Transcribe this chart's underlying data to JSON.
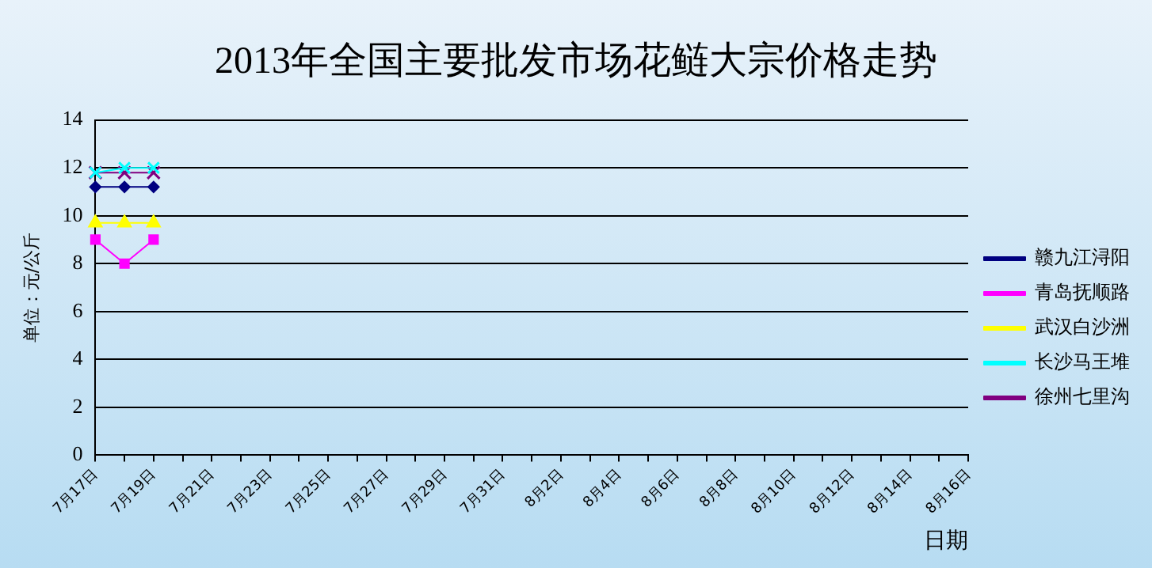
{
  "chart_data": {
    "type": "line",
    "title": "2013年全国主要批发市场花鲢大宗价格走势",
    "xlabel": "日期",
    "ylabel": "单位：元/公斤",
    "categories": [
      "7月17日",
      null,
      "7月19日",
      null,
      "7月21日",
      null,
      "7月23日",
      null,
      "7月25日",
      null,
      "7月27日",
      null,
      "7月29日",
      null,
      "7月31日",
      null,
      "8月2日",
      null,
      "8月4日",
      null,
      "8月6日",
      null,
      "8月8日",
      null,
      "8月10日",
      null,
      "8月12日",
      null,
      "8月14日",
      null,
      "8月16日"
    ],
    "series": [
      {
        "name": "赣九江浔阳",
        "color": "#000080",
        "marker": "diamond",
        "values": [
          11.2,
          11.2,
          11.2,
          null,
          null,
          null,
          null,
          null,
          null,
          null,
          null,
          null,
          null,
          null,
          null,
          null,
          null,
          null,
          null,
          null,
          null,
          null,
          null,
          null,
          null,
          null,
          null,
          null,
          null,
          null,
          null
        ]
      },
      {
        "name": "青岛抚顺路",
        "color": "#ff00ff",
        "marker": "square",
        "values": [
          9,
          8,
          9,
          null,
          null,
          null,
          null,
          null,
          null,
          null,
          null,
          null,
          null,
          null,
          null,
          null,
          null,
          null,
          null,
          null,
          null,
          null,
          null,
          null,
          null,
          null,
          null,
          null,
          null,
          null,
          null
        ]
      },
      {
        "name": "武汉白沙洲",
        "color": "#ffff00",
        "marker": "triangle",
        "values": [
          9.7,
          9.7,
          9.7,
          null,
          null,
          null,
          null,
          null,
          null,
          null,
          null,
          null,
          null,
          null,
          null,
          null,
          null,
          null,
          null,
          null,
          null,
          null,
          null,
          null,
          null,
          null,
          null,
          null,
          null,
          null,
          null
        ]
      },
      {
        "name": "长沙马王堆",
        "color": "#00ffff",
        "marker": "cross",
        "values": [
          11.8,
          12,
          12,
          null,
          null,
          null,
          null,
          null,
          null,
          null,
          null,
          null,
          null,
          null,
          null,
          null,
          null,
          null,
          null,
          null,
          null,
          null,
          null,
          null,
          null,
          null,
          null,
          null,
          null,
          null,
          null
        ]
      },
      {
        "name": "徐州七里沟",
        "color": "#800080",
        "marker": "cross",
        "values": [
          11.8,
          11.8,
          11.8,
          null,
          null,
          null,
          null,
          null,
          null,
          null,
          null,
          null,
          null,
          null,
          null,
          null,
          null,
          null,
          null,
          null,
          null,
          null,
          null,
          null,
          null,
          null,
          null,
          null,
          null,
          null,
          null
        ]
      }
    ],
    "ylim": [
      0,
      14
    ],
    "yticks": [
      0,
      2,
      4,
      6,
      8,
      10,
      12,
      14
    ],
    "grid": "y",
    "legend": "right"
  }
}
